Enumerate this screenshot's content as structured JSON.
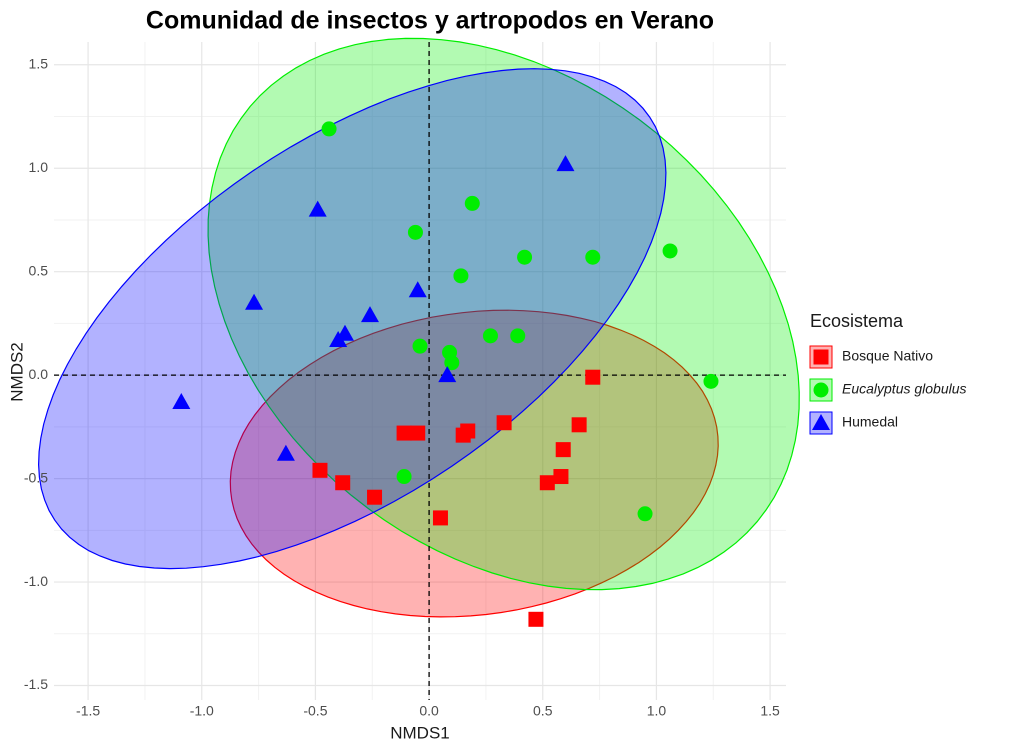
{
  "chart_data": {
    "type": "scatter",
    "title": "Comunidad de insectos y artropodos en Verano",
    "x_label": "NMDS1",
    "y_label": "NMDS2",
    "legend_title": "Ecosistema",
    "legend_position": "right",
    "grid": true,
    "hlines": [
      0
    ],
    "vlines": [
      0
    ],
    "ellipses": true,
    "xlim": [
      -1.65,
      1.57
    ],
    "ylim": [
      -1.57,
      1.61
    ],
    "xticks": [
      -1.5,
      {
        "value": -1,
        "label": "-1.0"
      },
      -0.5,
      {
        "value": 0,
        "label": "0.0"
      },
      0.5,
      {
        "value": 1,
        "label": "1.0"
      },
      1.5
    ],
    "yticks": [
      -1.5,
      {
        "value": -1,
        "label": "-1.0"
      },
      -0.5,
      {
        "value": 0,
        "label": "0.0"
      },
      0.5,
      {
        "value": 1,
        "label": "1.0"
      },
      1.5
    ],
    "series": [
      {
        "name": "Bosque Nativo",
        "color": "#ff0000",
        "shape": "square",
        "x": [
          0.72,
          0.33,
          0.66,
          0.59,
          0.58,
          0.52,
          0.17,
          0.15,
          -0.05,
          -0.11,
          -0.48,
          -0.38,
          -0.24,
          0.05,
          0.47
        ],
        "values": [
          -0.01,
          -0.23,
          -0.24,
          -0.36,
          -0.49,
          -0.52,
          -0.27,
          -0.29,
          -0.28,
          -0.28,
          -0.46,
          -0.52,
          -0.59,
          -0.69,
          -1.18
        ]
      },
      {
        "name": "Eucalyptus globulus",
        "color": "#00ee00",
        "shape": "circle",
        "italic": true,
        "x": [
          -0.44,
          0.19,
          -0.06,
          0.42,
          0.72,
          1.06,
          0.14,
          0.27,
          0.39,
          -0.04,
          0.09,
          0.1,
          1.24,
          -0.11,
          0.95
        ],
        "values": [
          1.19,
          0.83,
          0.69,
          0.57,
          0.57,
          0.6,
          0.48,
          0.19,
          0.19,
          0.14,
          0.11,
          0.06,
          -0.03,
          -0.49,
          -0.67
        ]
      },
      {
        "name": "Humedal",
        "color": "#0000ff",
        "shape": "triangle",
        "x": [
          0.6,
          -0.49,
          -0.77,
          -0.05,
          -0.26,
          -0.37,
          -0.4,
          0.08,
          -1.09,
          -0.63
        ],
        "values": [
          1.02,
          0.8,
          0.35,
          0.41,
          0.29,
          0.2,
          0.17,
          0.0,
          -0.13,
          -0.38
        ]
      }
    ]
  }
}
